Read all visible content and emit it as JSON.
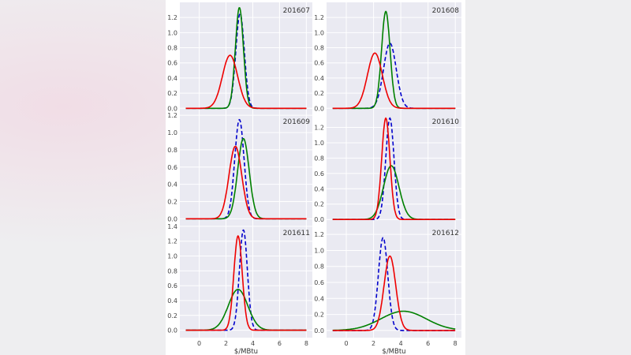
{
  "chart_data": [
    {
      "type": "line",
      "title": "201607",
      "xlabel": "",
      "xlim": [
        -1.45,
        8.45
      ],
      "ylim": [
        -0.07,
        1.4
      ],
      "yticks": [
        "0.0",
        "0.2",
        "0.4",
        "0.6",
        "0.8",
        "1.0",
        "1.2"
      ],
      "xticks": [],
      "series": [
        {
          "color": "#0000cc",
          "dashed": true,
          "mean": 3.05,
          "peak": 1.25
        },
        {
          "color": "#008000",
          "dashed": false,
          "mean": 3.0,
          "peak": 1.33
        },
        {
          "color": "#ee0000",
          "dashed": false,
          "mean": 2.3,
          "peak": 0.7
        }
      ]
    },
    {
      "type": "line",
      "title": "201608",
      "xlabel": "",
      "xlim": [
        -1.45,
        8.45
      ],
      "ylim": [
        -0.07,
        1.4
      ],
      "yticks": [
        "0.0",
        "0.2",
        "0.4",
        "0.6",
        "0.8",
        "1.0",
        "1.2"
      ],
      "xticks": [],
      "series": [
        {
          "color": "#0000cc",
          "dashed": true,
          "mean": 3.2,
          "peak": 0.86
        },
        {
          "color": "#008000",
          "dashed": false,
          "mean": 2.9,
          "peak": 1.28
        },
        {
          "color": "#ee0000",
          "dashed": false,
          "mean": 2.1,
          "peak": 0.73
        }
      ]
    },
    {
      "type": "line",
      "title": "201609",
      "xlabel": "",
      "xlim": [
        -1.45,
        8.45
      ],
      "ylim": [
        -0.07,
        1.22
      ],
      "yticks": [
        "0.0",
        "0.2",
        "0.4",
        "0.6",
        "0.8",
        "1.0",
        "1.2"
      ],
      "xticks": [],
      "series": [
        {
          "color": "#0000cc",
          "dashed": true,
          "mean": 3.0,
          "peak": 1.15
        },
        {
          "color": "#008000",
          "dashed": false,
          "mean": 3.3,
          "peak": 0.93
        },
        {
          "color": "#ee0000",
          "dashed": false,
          "mean": 2.7,
          "peak": 0.84
        }
      ]
    },
    {
      "type": "line",
      "title": "201610",
      "xlabel": "",
      "xlim": [
        -1.45,
        8.45
      ],
      "ylim": [
        -0.07,
        1.38
      ],
      "yticks": [
        "0.0",
        "0.2",
        "0.4",
        "0.6",
        "0.8",
        "1.0",
        "1.2"
      ],
      "xticks": [],
      "series": [
        {
          "color": "#0000cc",
          "dashed": true,
          "mean": 3.2,
          "peak": 1.32
        },
        {
          "color": "#008000",
          "dashed": false,
          "mean": 3.3,
          "peak": 0.7
        },
        {
          "color": "#ee0000",
          "dashed": false,
          "mean": 2.9,
          "peak": 1.32
        }
      ]
    },
    {
      "type": "line",
      "title": "201611",
      "xlabel": "$/MBtu",
      "xlim": [
        -1.45,
        8.45
      ],
      "ylim": [
        -0.1,
        1.42
      ],
      "yticks": [
        "0.0",
        "0.2",
        "0.4",
        "0.6",
        "0.8",
        "1.0",
        "1.2",
        "1.4"
      ],
      "xticks": [
        "0",
        "2",
        "4",
        "6",
        "8"
      ],
      "series": [
        {
          "color": "#0000cc",
          "dashed": true,
          "mean": 3.3,
          "peak": 1.35
        },
        {
          "color": "#008000",
          "dashed": false,
          "mean": 2.9,
          "peak": 0.55
        },
        {
          "color": "#ee0000",
          "dashed": false,
          "mean": 2.9,
          "peak": 1.27
        }
      ]
    },
    {
      "type": "line",
      "title": "201612",
      "xlabel": "$/MBtu",
      "xlim": [
        -1.45,
        8.45
      ],
      "ylim": [
        -0.09,
        1.32
      ],
      "yticks": [
        "0.0",
        "0.2",
        "0.4",
        "0.6",
        "0.8",
        "1.0",
        "1.2"
      ],
      "xticks": [
        "0",
        "2",
        "4",
        "6",
        "8"
      ],
      "series": [
        {
          "color": "#0000cc",
          "dashed": true,
          "mean": 2.7,
          "peak": 1.16
        },
        {
          "color": "#008000",
          "dashed": false,
          "mean": 4.2,
          "peak": 0.24
        },
        {
          "color": "#ee0000",
          "dashed": false,
          "mean": 3.2,
          "peak": 0.93
        }
      ]
    }
  ]
}
